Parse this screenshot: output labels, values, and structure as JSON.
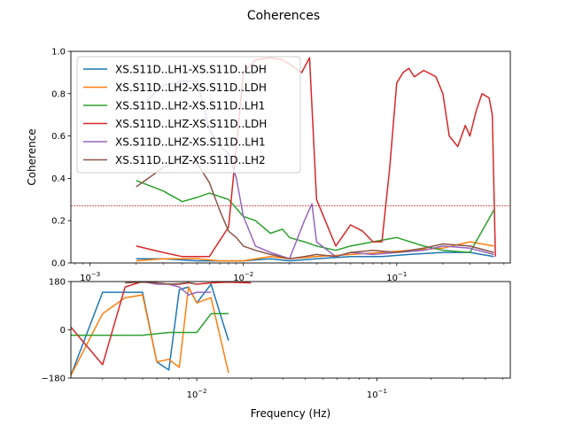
{
  "figure": {
    "title": "Coherences"
  },
  "chart_data": [
    {
      "type": "line",
      "ylabel": "Coherence",
      "xscale": "log",
      "xlim": [
        0.00075,
        0.55
      ],
      "ylim": [
        0,
        1.0
      ],
      "yticks": [
        0.0,
        0.2,
        0.4,
        0.6,
        0.8,
        1.0
      ],
      "ytick_labels": [
        "0.0",
        "0.2",
        "0.4",
        "0.6",
        "0.8",
        "1.0"
      ],
      "xticks": [
        0.001,
        0.01,
        0.1
      ],
      "xtick_labels": [
        "10−3",
        "10−2",
        "10−1"
      ],
      "threshold": 0.27,
      "legend_position": "upper-left",
      "series": [
        {
          "name": "XS.S11D..LH1-XS.S11D..LDH",
          "color": "#1f77b4",
          "x": [
            0.002,
            0.003,
            0.005,
            0.007,
            0.01,
            0.015,
            0.02,
            0.03,
            0.05,
            0.08,
            0.12,
            0.2,
            0.3,
            0.43
          ],
          "y": [
            0.02,
            0.02,
            0.01,
            0.01,
            0.01,
            0.02,
            0.01,
            0.02,
            0.03,
            0.03,
            0.04,
            0.05,
            0.05,
            0.03
          ]
        },
        {
          "name": "XS.S11D..LH2-XS.S11D..LDH",
          "color": "#ff7f0e",
          "x": [
            0.002,
            0.003,
            0.005,
            0.007,
            0.01,
            0.015,
            0.02,
            0.03,
            0.05,
            0.08,
            0.12,
            0.2,
            0.3,
            0.43
          ],
          "y": [
            0.01,
            0.02,
            0.02,
            0.01,
            0.01,
            0.03,
            0.02,
            0.03,
            0.04,
            0.05,
            0.06,
            0.07,
            0.1,
            0.08
          ]
        },
        {
          "name": "XS.S11D..LH2-XS.S11D..LH1",
          "color": "#2ca02c",
          "x": [
            0.002,
            0.003,
            0.004,
            0.005,
            0.006,
            0.008,
            0.01,
            0.012,
            0.015,
            0.018,
            0.02,
            0.025,
            0.03,
            0.04,
            0.05,
            0.07,
            0.1,
            0.15,
            0.2,
            0.3,
            0.43
          ],
          "y": [
            0.39,
            0.34,
            0.29,
            0.31,
            0.33,
            0.3,
            0.22,
            0.2,
            0.14,
            0.16,
            0.12,
            0.1,
            0.08,
            0.06,
            0.08,
            0.1,
            0.12,
            0.08,
            0.06,
            0.05,
            0.25
          ]
        },
        {
          "name": "XS.S11D..LHZ-XS.S11D..LDH",
          "color": "#d62728",
          "x": [
            0.002,
            0.003,
            0.004,
            0.005,
            0.006,
            0.008,
            0.009,
            0.01,
            0.012,
            0.015,
            0.018,
            0.02,
            0.024,
            0.027,
            0.03,
            0.04,
            0.05,
            0.06,
            0.07,
            0.08,
            0.09,
            0.1,
            0.11,
            0.12,
            0.13,
            0.15,
            0.18,
            0.2,
            0.22,
            0.25,
            0.28,
            0.3,
            0.33,
            0.36,
            0.4,
            0.42,
            0.44
          ],
          "y": [
            0.08,
            0.05,
            0.03,
            0.03,
            0.03,
            0.17,
            0.55,
            0.9,
            0.96,
            0.97,
            0.96,
            0.94,
            0.9,
            0.97,
            0.3,
            0.08,
            0.18,
            0.15,
            0.1,
            0.1,
            0.45,
            0.85,
            0.9,
            0.92,
            0.88,
            0.91,
            0.88,
            0.8,
            0.6,
            0.55,
            0.65,
            0.6,
            0.72,
            0.8,
            0.78,
            0.7,
            0.03
          ]
        },
        {
          "name": "XS.S11D..LHZ-XS.S11D..LH1",
          "color": "#9467bd",
          "x": [
            0.002,
            0.003,
            0.004,
            0.005,
            0.006,
            0.007,
            0.008,
            0.009,
            0.01,
            0.012,
            0.015,
            0.02,
            0.025,
            0.028,
            0.03,
            0.04,
            0.05,
            0.07,
            0.1,
            0.15,
            0.2,
            0.3,
            0.43
          ],
          "y": [
            0.72,
            0.84,
            0.86,
            0.86,
            0.63,
            0.55,
            0.52,
            0.4,
            0.22,
            0.08,
            0.05,
            0.02,
            0.2,
            0.28,
            0.1,
            0.03,
            0.05,
            0.04,
            0.05,
            0.06,
            0.08,
            0.07,
            0.04
          ]
        },
        {
          "name": "XS.S11D..LHZ-XS.S11D..LH2",
          "color": "#8c564b",
          "x": [
            0.002,
            0.003,
            0.004,
            0.005,
            0.006,
            0.007,
            0.008,
            0.009,
            0.01,
            0.012,
            0.015,
            0.02,
            0.025,
            0.03,
            0.04,
            0.05,
            0.07,
            0.1,
            0.15,
            0.2,
            0.3,
            0.43
          ],
          "y": [
            0.36,
            0.45,
            0.5,
            0.47,
            0.38,
            0.25,
            0.15,
            0.12,
            0.08,
            0.06,
            0.04,
            0.02,
            0.03,
            0.04,
            0.03,
            0.05,
            0.06,
            0.05,
            0.07,
            0.09,
            0.08,
            0.05
          ]
        }
      ]
    },
    {
      "type": "line",
      "xlabel": "Frequency (Hz)",
      "xscale": "log",
      "xlim": [
        0.002,
        0.55
      ],
      "ylim": [
        -180,
        180
      ],
      "yticks": [
        -180,
        0,
        180
      ],
      "ytick_labels": [
        "−180",
        "0",
        "180"
      ],
      "xticks": [
        0.01,
        0.1
      ],
      "xtick_labels": [
        "10−2",
        "10−1"
      ],
      "series": [
        {
          "color": "#1f77b4",
          "x": [
            0.002,
            0.003,
            0.004,
            0.005,
            0.006,
            0.007,
            0.008,
            0.009,
            0.01,
            0.012,
            0.015
          ],
          "y": [
            -170,
            140,
            140,
            140,
            -120,
            -150,
            150,
            160,
            100,
            170,
            -40
          ]
        },
        {
          "color": "#ff7f0e",
          "x": [
            0.002,
            0.003,
            0.004,
            0.005,
            0.006,
            0.007,
            0.008,
            0.009,
            0.01,
            0.012,
            0.015
          ],
          "y": [
            -170,
            60,
            120,
            130,
            -120,
            -110,
            -140,
            160,
            100,
            120,
            -160
          ]
        },
        {
          "color": "#2ca02c",
          "x": [
            0.002,
            0.003,
            0.005,
            0.007,
            0.01,
            0.012,
            0.015
          ],
          "y": [
            -20,
            -20,
            -20,
            -10,
            -10,
            60,
            60
          ]
        },
        {
          "color": "#d62728",
          "x": [
            0.002,
            0.003,
            0.004,
            0.005,
            0.006,
            0.007,
            0.008,
            0.009,
            0.01,
            0.012,
            0.015,
            0.02
          ],
          "y": [
            10,
            -130,
            160,
            180,
            175,
            170,
            170,
            175,
            170,
            175,
            178,
            175
          ]
        },
        {
          "color": "#9467bd",
          "x": [
            0.005,
            0.006,
            0.007,
            0.008,
            0.009,
            0.01,
            0.012
          ],
          "y": [
            180,
            170,
            170,
            160,
            130,
            140,
            140
          ]
        },
        {
          "color": "#8c564b",
          "x": [
            0.004,
            0.005,
            0.006,
            0.007,
            0.008,
            0.009,
            0.01
          ],
          "y": [
            175,
            178,
            175,
            170,
            172,
            176,
            170
          ]
        }
      ]
    }
  ]
}
